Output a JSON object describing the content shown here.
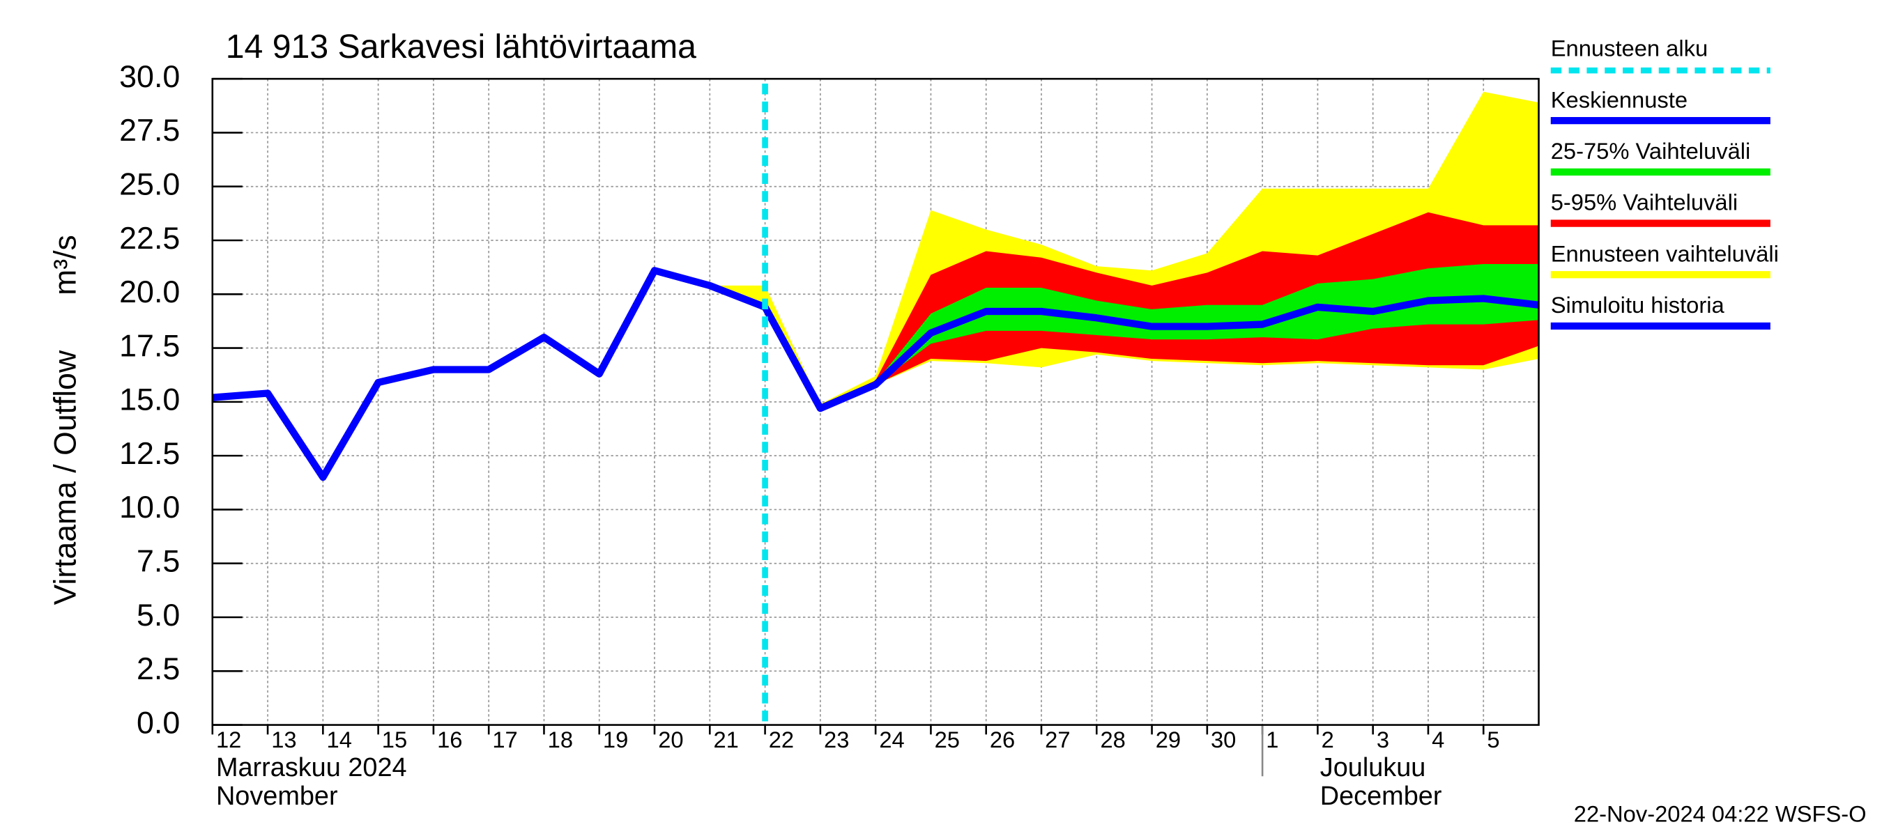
{
  "chart_data": {
    "type": "line",
    "title": "14 913 Sarkavesi lähtövirtaama",
    "y_label": "Virtaama / Outflow",
    "y_unit": "m³/s",
    "month_labels": [
      {
        "x": "2024-11-12",
        "lines": [
          "Marraskuu 2024",
          "November"
        ]
      },
      {
        "x": "2024-12-01",
        "lines": [
          "Joulukuu",
          "December"
        ]
      }
    ],
    "footer": "22-Nov-2024 04:22 WSFS-O",
    "forecast_start": {
      "name": "Ennusteen alku",
      "x": "2024-11-22",
      "color": "#00e5ee"
    },
    "x": [
      "2024-11-12",
      "2024-11-13",
      "2024-11-14",
      "2024-11-15",
      "2024-11-16",
      "2024-11-17",
      "2024-11-18",
      "2024-11-19",
      "2024-11-20",
      "2024-11-21",
      "2024-11-22",
      "2024-11-23",
      "2024-11-24",
      "2024-11-25",
      "2024-11-26",
      "2024-11-27",
      "2024-11-28",
      "2024-11-29",
      "2024-11-30",
      "2024-12-01",
      "2024-12-02",
      "2024-12-03",
      "2024-12-04",
      "2024-12-05",
      "2024-12-06"
    ],
    "series": [
      {
        "name": "Keskiennuste",
        "color": "#0000ff",
        "values": [
          null,
          null,
          null,
          null,
          null,
          null,
          null,
          null,
          null,
          null,
          19.4,
          14.7,
          15.8,
          18.2,
          19.2,
          19.2,
          18.9,
          18.5,
          18.5,
          18.6,
          19.4,
          19.2,
          19.7,
          19.8,
          19.5
        ]
      },
      {
        "name": "25-75% Vaihteluväli",
        "color": "#00ee00",
        "lower": [
          null,
          null,
          null,
          null,
          null,
          null,
          null,
          null,
          null,
          null,
          19.4,
          14.7,
          15.8,
          17.7,
          18.3,
          18.3,
          18.1,
          17.9,
          17.9,
          18.0,
          17.9,
          18.4,
          18.6,
          18.6,
          18.8
        ],
        "upper": [
          null,
          null,
          null,
          null,
          null,
          null,
          null,
          null,
          null,
          null,
          19.4,
          14.8,
          15.9,
          19.1,
          20.3,
          20.3,
          19.7,
          19.3,
          19.5,
          19.5,
          20.5,
          20.7,
          21.2,
          21.4,
          21.4
        ]
      },
      {
        "name": "5-95% Vaihteluväli",
        "color": "#ff0000",
        "lower": [
          null,
          null,
          null,
          null,
          null,
          null,
          null,
          null,
          null,
          null,
          19.4,
          14.7,
          15.8,
          17.0,
          16.9,
          17.5,
          17.3,
          17.0,
          16.9,
          16.8,
          16.9,
          16.8,
          16.7,
          16.7,
          17.6
        ],
        "upper": [
          null,
          null,
          null,
          null,
          null,
          null,
          null,
          null,
          null,
          null,
          19.4,
          14.8,
          16.0,
          20.9,
          22.0,
          21.7,
          21.0,
          20.4,
          21.0,
          22.0,
          21.8,
          22.8,
          23.8,
          23.2,
          23.2
        ]
      },
      {
        "name": "Ennusteen vaihteluväli",
        "color": "#ffff00",
        "lower": [
          null,
          null,
          null,
          null,
          null,
          null,
          null,
          null,
          null,
          20.4,
          19.2,
          14.7,
          15.8,
          16.9,
          16.8,
          16.6,
          17.2,
          16.9,
          16.8,
          16.7,
          16.8,
          16.7,
          16.6,
          16.5,
          17.0
        ],
        "upper": [
          null,
          null,
          null,
          null,
          null,
          null,
          null,
          null,
          null,
          20.4,
          20.4,
          14.9,
          16.2,
          23.9,
          23.0,
          22.3,
          21.3,
          21.1,
          21.9,
          24.9,
          24.9,
          24.9,
          24.9,
          29.4,
          28.9
        ]
      },
      {
        "name": "Simuloitu historia",
        "color": "#0000ff",
        "values": [
          15.2,
          15.4,
          11.5,
          15.9,
          16.5,
          16.5,
          18.0,
          16.3,
          21.1,
          20.4,
          19.4,
          null,
          null,
          null,
          null,
          null,
          null,
          null,
          null,
          null,
          null,
          null,
          null,
          null,
          null
        ]
      }
    ],
    "xlim": [
      "2024-11-12",
      "2024-12-06"
    ],
    "xticks": [
      {
        "value": "2024-11-12",
        "label": "12"
      },
      {
        "value": "2024-11-13",
        "label": "13"
      },
      {
        "value": "2024-11-14",
        "label": "14"
      },
      {
        "value": "2024-11-15",
        "label": "15"
      },
      {
        "value": "2024-11-16",
        "label": "16"
      },
      {
        "value": "2024-11-17",
        "label": "17"
      },
      {
        "value": "2024-11-18",
        "label": "18"
      },
      {
        "value": "2024-11-19",
        "label": "19"
      },
      {
        "value": "2024-11-20",
        "label": "20"
      },
      {
        "value": "2024-11-21",
        "label": "21"
      },
      {
        "value": "2024-11-22",
        "label": "22"
      },
      {
        "value": "2024-11-23",
        "label": "23"
      },
      {
        "value": "2024-11-24",
        "label": "24"
      },
      {
        "value": "2024-11-25",
        "label": "25"
      },
      {
        "value": "2024-11-26",
        "label": "26"
      },
      {
        "value": "2024-11-27",
        "label": "27"
      },
      {
        "value": "2024-11-28",
        "label": "28"
      },
      {
        "value": "2024-11-29",
        "label": "29"
      },
      {
        "value": "2024-11-30",
        "label": "30"
      },
      {
        "value": "2024-12-01",
        "label": "1"
      },
      {
        "value": "2024-12-02",
        "label": "2"
      },
      {
        "value": "2024-12-03",
        "label": "3"
      },
      {
        "value": "2024-12-04",
        "label": "4"
      },
      {
        "value": "2024-12-05",
        "label": "5"
      }
    ],
    "ylim": [
      0,
      30
    ],
    "yticks": [
      {
        "value": 0,
        "label": "0.0"
      },
      {
        "value": 2.5,
        "label": "2.5"
      },
      {
        "value": 5,
        "label": "5.0"
      },
      {
        "value": 7.5,
        "label": "7.5"
      },
      {
        "value": 10,
        "label": "10.0"
      },
      {
        "value": 12.5,
        "label": "12.5"
      },
      {
        "value": 15,
        "label": "15.0"
      },
      {
        "value": 17.5,
        "label": "17.5"
      },
      {
        "value": 20,
        "label": "20.0"
      },
      {
        "value": 22.5,
        "label": "22.5"
      },
      {
        "value": 25,
        "label": "25.0"
      },
      {
        "value": 27.5,
        "label": "27.5"
      },
      {
        "value": 30,
        "label": "30.0"
      }
    ],
    "grid": true
  }
}
